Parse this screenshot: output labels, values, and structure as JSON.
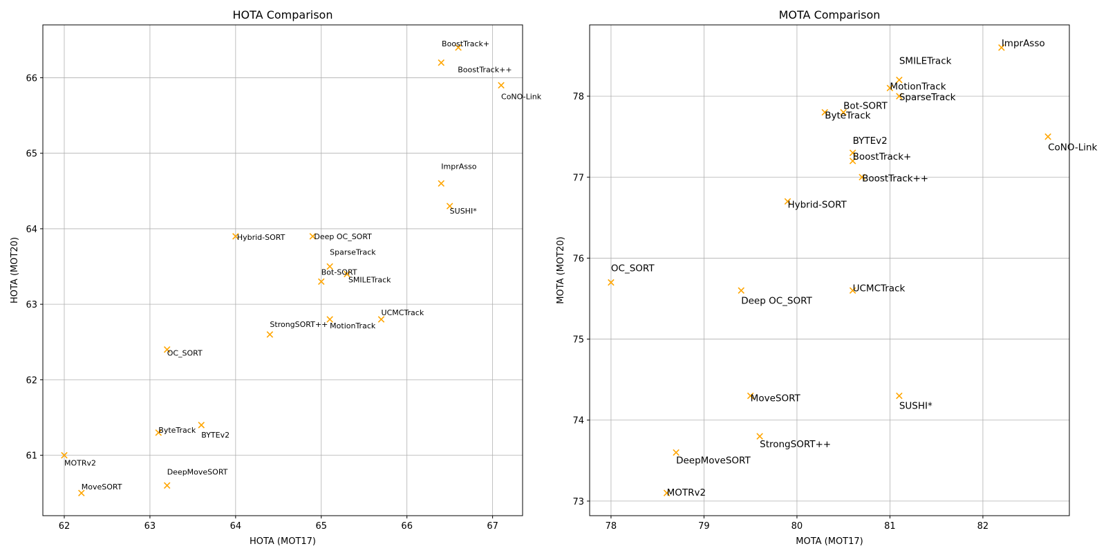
{
  "chart_data": [
    {
      "type": "scatter",
      "title": "HOTA Comparison",
      "xlabel": "HOTA (MOT17)",
      "ylabel": "HOTA (MOT20)",
      "xlim": [
        61.75,
        67.35
      ],
      "ylim": [
        60.2,
        66.7
      ],
      "xticks": [
        62,
        63,
        64,
        65,
        66,
        67
      ],
      "yticks": [
        61,
        62,
        63,
        64,
        65,
        66
      ],
      "grid": true,
      "marker": "x",
      "color": "#ffa500",
      "points": [
        {
          "label": "BoostTrack+",
          "x": 66.6,
          "y": 66.4
        },
        {
          "label": "BoostTrack++",
          "x": 66.4,
          "y": 66.2
        },
        {
          "label": "CoNO-Link",
          "x": 67.1,
          "y": 65.9
        },
        {
          "label": "ImprAsso",
          "x": 66.4,
          "y": 64.6
        },
        {
          "label": "SUSHI*",
          "x": 66.5,
          "y": 64.3
        },
        {
          "label": "Hybrid-SORT",
          "x": 64.0,
          "y": 63.9
        },
        {
          "label": "Deep OC_SORT",
          "x": 64.9,
          "y": 63.9
        },
        {
          "label": "SparseTrack",
          "x": 65.1,
          "y": 63.5
        },
        {
          "label": "Bot-SORT",
          "x": 65.0,
          "y": 63.3
        },
        {
          "label": "SMILETrack",
          "x": 65.3,
          "y": 63.4
        },
        {
          "label": "UCMCTrack",
          "x": 65.7,
          "y": 62.8
        },
        {
          "label": "MotionTrack",
          "x": 65.1,
          "y": 62.8
        },
        {
          "label": "StrongSORT++",
          "x": 64.4,
          "y": 62.6
        },
        {
          "label": "OC_SORT",
          "x": 63.2,
          "y": 62.4
        },
        {
          "label": "ByteTrack",
          "x": 63.1,
          "y": 61.3
        },
        {
          "label": "BYTEv2",
          "x": 63.6,
          "y": 61.4
        },
        {
          "label": "MOTRv2",
          "x": 62.0,
          "y": 61.0
        },
        {
          "label": "MoveSORT",
          "x": 62.2,
          "y": 60.5
        },
        {
          "label": "DeepMoveSORT",
          "x": 63.2,
          "y": 60.6
        }
      ]
    },
    {
      "type": "scatter",
      "title": "MOTA Comparison",
      "xlabel": "MOTA (MOT17)",
      "ylabel": "MOTA (MOT20)",
      "xlim": [
        77.77,
        82.93
      ],
      "ylim": [
        72.82,
        78.88
      ],
      "xticks": [
        78,
        79,
        80,
        81,
        82
      ],
      "yticks": [
        73,
        74,
        75,
        76,
        77,
        78
      ],
      "grid": true,
      "marker": "x",
      "color": "#ffa500",
      "points": [
        {
          "label": "ImprAsso",
          "x": 82.2,
          "y": 78.6
        },
        {
          "label": "SMILETrack",
          "x": 81.1,
          "y": 78.2
        },
        {
          "label": "MotionTrack",
          "x": 81.0,
          "y": 78.1
        },
        {
          "label": "SparseTrack",
          "x": 81.1,
          "y": 78.0
        },
        {
          "label": "Bot-SORT",
          "x": 80.5,
          "y": 77.8
        },
        {
          "label": "ByteTrack",
          "x": 80.3,
          "y": 77.8
        },
        {
          "label": "CoNO-Link",
          "x": 82.7,
          "y": 77.5
        },
        {
          "label": "BYTEv2",
          "x": 80.6,
          "y": 77.3
        },
        {
          "label": "BoostTrack+",
          "x": 80.6,
          "y": 77.2
        },
        {
          "label": "BoostTrack++",
          "x": 80.7,
          "y": 77.0
        },
        {
          "label": "Hybrid-SORT",
          "x": 79.9,
          "y": 76.7
        },
        {
          "label": "OC_SORT",
          "x": 78.0,
          "y": 75.7
        },
        {
          "label": "Deep OC_SORT",
          "x": 79.4,
          "y": 75.6
        },
        {
          "label": "UCMCTrack",
          "x": 80.6,
          "y": 75.6
        },
        {
          "label": "MoveSORT",
          "x": 79.5,
          "y": 74.3
        },
        {
          "label": "SUSHI*",
          "x": 81.1,
          "y": 74.3
        },
        {
          "label": "StrongSORT++",
          "x": 79.6,
          "y": 73.8
        },
        {
          "label": "DeepMoveSORT",
          "x": 78.7,
          "y": 73.6
        },
        {
          "label": "MOTRv2",
          "x": 78.6,
          "y": 73.1
        }
      ]
    }
  ]
}
